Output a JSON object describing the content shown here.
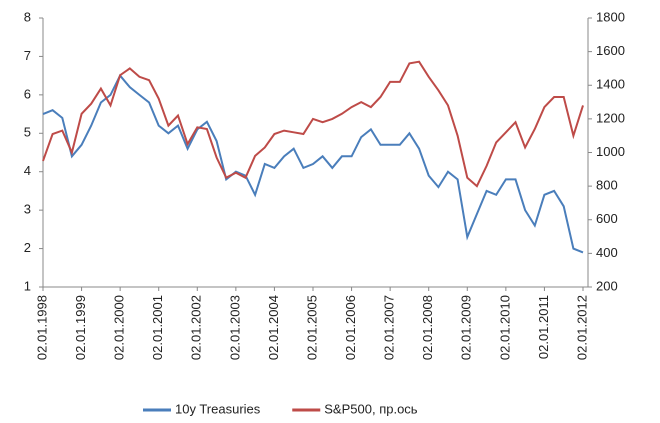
{
  "chart_data": {
    "type": "line",
    "x": [
      "1998-01",
      "1998-04",
      "1998-07",
      "1998-10",
      "1999-01",
      "1999-04",
      "1999-07",
      "1999-10",
      "2000-01",
      "2000-04",
      "2000-07",
      "2000-10",
      "2001-01",
      "2001-04",
      "2001-07",
      "2001-10",
      "2002-01",
      "2002-04",
      "2002-07",
      "2002-10",
      "2003-01",
      "2003-04",
      "2003-07",
      "2003-10",
      "2004-01",
      "2004-04",
      "2004-07",
      "2004-10",
      "2005-01",
      "2005-04",
      "2005-07",
      "2005-10",
      "2006-01",
      "2006-04",
      "2006-07",
      "2006-10",
      "2007-01",
      "2007-04",
      "2007-07",
      "2007-10",
      "2008-01",
      "2008-04",
      "2008-07",
      "2008-10",
      "2009-01",
      "2009-04",
      "2009-07",
      "2009-10",
      "2010-01",
      "2010-04",
      "2010-07",
      "2010-10",
      "2011-01",
      "2011-04",
      "2011-07",
      "2011-10",
      "2012-01"
    ],
    "series": [
      {
        "name": "10y Treasuries",
        "color": "#4a7ebb",
        "values": [
          5.5,
          5.6,
          5.4,
          4.4,
          4.7,
          5.2,
          5.8,
          6.0,
          6.5,
          6.2,
          6.0,
          5.8,
          5.2,
          5.0,
          5.2,
          4.6,
          5.1,
          5.3,
          4.8,
          3.8,
          4.0,
          3.9,
          3.4,
          4.2,
          4.1,
          4.4,
          4.6,
          4.1,
          4.2,
          4.4,
          4.1,
          4.4,
          4.4,
          4.9,
          5.1,
          4.7,
          4.7,
          4.7,
          5.0,
          4.6,
          3.9,
          3.6,
          4.0,
          3.8,
          2.3,
          2.9,
          3.5,
          3.4,
          3.8,
          3.8,
          3.0,
          2.6,
          3.4,
          3.5,
          3.1,
          2.0,
          1.9
        ]
      },
      {
        "name": "S&P500, пр.ось",
        "color": "#be4b48",
        "axis": "y2",
        "values": [
          950,
          1110,
          1130,
          1000,
          1230,
          1290,
          1380,
          1280,
          1460,
          1500,
          1450,
          1430,
          1320,
          1160,
          1220,
          1050,
          1150,
          1140,
          970,
          850,
          880,
          850,
          980,
          1030,
          1110,
          1130,
          1120,
          1110,
          1200,
          1180,
          1200,
          1230,
          1270,
          1300,
          1270,
          1330,
          1420,
          1420,
          1530,
          1540,
          1450,
          1370,
          1280,
          1100,
          850,
          800,
          920,
          1060,
          1120,
          1180,
          1030,
          1140,
          1270,
          1330,
          1330,
          1100,
          1280
        ]
      }
    ],
    "ylim": [
      1,
      8
    ],
    "yticks": [
      1,
      2,
      3,
      4,
      5,
      6,
      7,
      8
    ],
    "y2lim": [
      200,
      1800
    ],
    "y2ticks": [
      200,
      400,
      600,
      800,
      1000,
      1200,
      1400,
      1600,
      1800
    ],
    "xticks": [
      {
        "value": "1998-01",
        "label": "02.01.1998"
      },
      {
        "value": "1999-01",
        "label": "02.01.1999"
      },
      {
        "value": "2000-01",
        "label": "02.01.2000"
      },
      {
        "value": "2001-01",
        "label": "02.01.2001"
      },
      {
        "value": "2002-01",
        "label": "02.01.2002"
      },
      {
        "value": "2003-01",
        "label": "02.01.2003"
      },
      {
        "value": "2004-01",
        "label": "02.01.2004"
      },
      {
        "value": "2005-01",
        "label": "02.01.2005"
      },
      {
        "value": "2006-01",
        "label": "02.01.2006"
      },
      {
        "value": "2007-01",
        "label": "02.01.2007"
      },
      {
        "value": "2008-01",
        "label": "02.01.2008"
      },
      {
        "value": "2009-01",
        "label": "02.01.2009"
      },
      {
        "value": "2010-01",
        "label": "02.01.2010"
      },
      {
        "value": "2011-01",
        "label": "02.01.2011"
      },
      {
        "value": "2012-01",
        "label": "02.01.2012"
      }
    ],
    "grid": false,
    "legend": "bottom"
  }
}
